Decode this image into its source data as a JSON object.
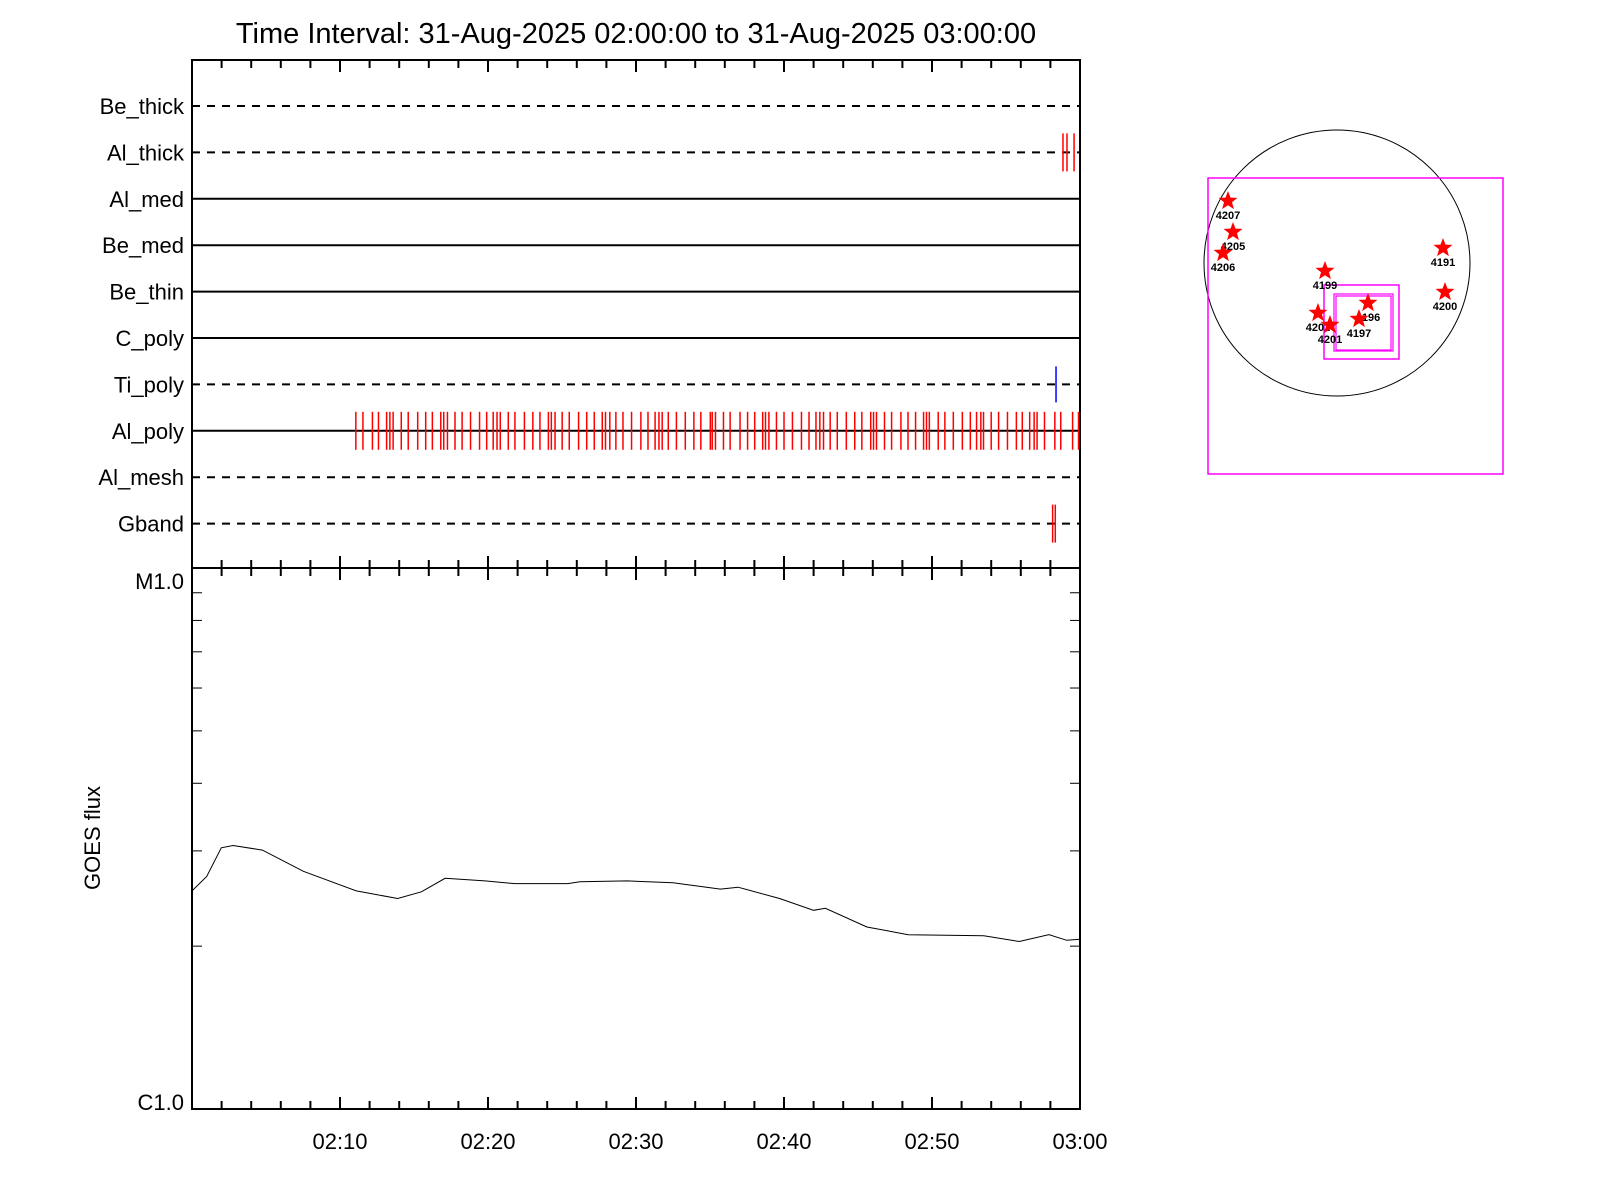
{
  "title": "Time Interval: 31-Aug-2025 02:00:00 to 31-Aug-2025 03:00:00",
  "colors": {
    "observation": "#ff0000",
    "ti_poly_observation": "#0000ff",
    "fov_box": "#ff00ff",
    "active_region_star": "#ff0000",
    "axes": "#000000"
  },
  "chart_data": [
    {
      "type": "timeline",
      "x_unit": "minutes after 02:00",
      "xlim": [
        0,
        60
      ],
      "rows": [
        {
          "name": "Be_thick",
          "line": "dashed",
          "obs_minutes": []
        },
        {
          "name": "Al_thick",
          "line": "dashed",
          "obs_minutes": [
            58.85,
            59.12,
            59.6
          ]
        },
        {
          "name": "Al_med",
          "line": "solid",
          "obs_minutes": []
        },
        {
          "name": "Be_med",
          "line": "solid",
          "obs_minutes": []
        },
        {
          "name": "Be_thin",
          "line": "solid",
          "obs_minutes": []
        },
        {
          "name": "C_poly",
          "line": "solid",
          "obs_minutes": []
        },
        {
          "name": "Ti_poly",
          "line": "dashed",
          "obs_minutes": [
            58.38
          ],
          "obs_color": "#0000ff"
        },
        {
          "name": "Al_poly",
          "line": "solid",
          "obs_minutes": [
            11.07,
            11.55,
            12.19,
            12.6,
            13.15,
            13.37,
            13.59,
            14.14,
            14.61,
            15.25,
            15.79,
            16.24,
            16.81,
            17.01,
            17.26,
            17.77,
            18.25,
            18.82,
            19.43,
            19.91,
            20.35,
            20.61,
            20.83,
            21.37,
            21.82,
            22.46,
            23.03,
            23.51,
            24.08,
            24.28,
            24.53,
            25.01,
            25.49,
            26.12,
            26.67,
            27.18,
            27.72,
            27.94,
            28.23,
            28.64,
            29.12,
            29.7,
            30.33,
            30.81,
            31.29,
            31.55,
            31.77,
            32.18,
            32.73,
            33.33,
            33.91,
            34.38,
            35.02,
            35.15,
            35.37,
            35.91,
            36.36,
            37.03,
            37.54,
            38.02,
            38.56,
            38.75,
            38.98,
            39.49,
            40.0,
            40.57,
            41.18,
            41.69,
            42.16,
            42.42,
            42.67,
            43.12,
            43.6,
            44.21,
            44.78,
            45.26,
            45.86,
            46.05,
            46.25,
            46.79,
            47.27,
            47.9,
            48.38,
            48.89,
            49.43,
            49.63,
            49.82,
            50.42,
            50.87,
            51.44,
            52.05,
            52.59,
            53.01,
            53.3,
            53.48,
            54.0,
            54.5,
            55.1,
            55.7,
            56.1,
            56.6,
            56.9,
            57.1,
            57.6,
            58.3,
            58.7,
            59.5,
            59.9
          ]
        },
        {
          "name": "Al_mesh",
          "line": "dashed",
          "obs_minutes": []
        },
        {
          "name": "Gband",
          "line": "dashed",
          "obs_minutes": [
            58.15,
            58.33
          ]
        }
      ]
    },
    {
      "type": "line",
      "ylabel": "GOES flux",
      "y_scale": "log",
      "ylim": [
        1e-06,
        1e-05
      ],
      "ytick_labels": [
        "C1.0",
        "M1.0"
      ],
      "xlim": [
        0,
        60
      ],
      "xtick_labels": [
        "02:10",
        "02:20",
        "02:30",
        "02:40",
        "02:50",
        "03:00"
      ],
      "x": [
        0,
        0.99,
        1.98,
        2.78,
        4.76,
        7.53,
        11.1,
        13.9,
        15.5,
        17.1,
        19.8,
        21.8,
        25.4,
        26.2,
        29.4,
        32.5,
        35.7,
        36.9,
        39.7,
        42.0,
        42.8,
        45.6,
        48.4,
        53.5,
        55.9,
        57.9,
        59.1,
        60
      ],
      "y": [
        2.53e-06,
        2.69e-06,
        3.04e-06,
        3.07e-06,
        3.01e-06,
        2.75e-06,
        2.53e-06,
        2.45e-06,
        2.52e-06,
        2.67e-06,
        2.64e-06,
        2.61e-06,
        2.61e-06,
        2.63e-06,
        2.64e-06,
        2.62e-06,
        2.55e-06,
        2.57e-06,
        2.45e-06,
        2.33e-06,
        2.35e-06,
        2.17e-06,
        2.1e-06,
        2.09e-06,
        2.04e-06,
        2.1e-06,
        2.05e-06,
        2.06e-06
      ]
    },
    {
      "type": "scatter",
      "description_kind": "solar disk map",
      "active_regions": [
        "4207",
        "4205",
        "4206",
        "4199",
        "4191",
        "4200",
        "4196",
        "4197",
        "4202",
        "4201"
      ]
    }
  ]
}
